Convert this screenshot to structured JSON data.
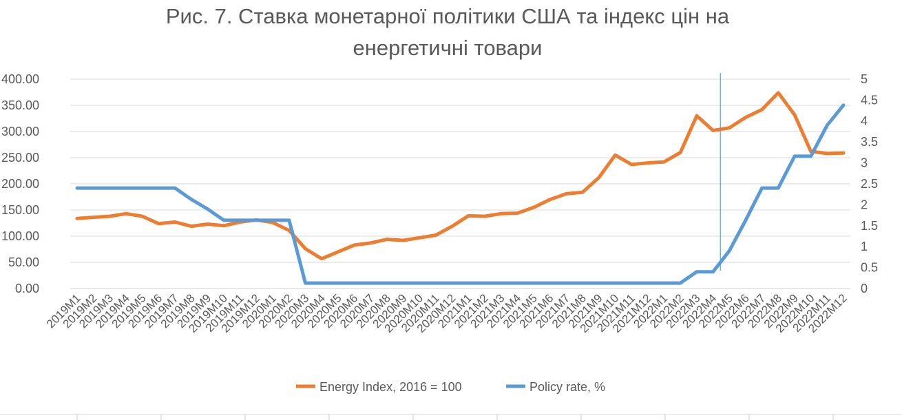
{
  "chart_data": {
    "type": "line",
    "title_line1": "Рис. 7. Ставка монетарної політики США та індекс цін на",
    "title_line2": "енергетичні товари",
    "categories": [
      "2019M1",
      "2019M2",
      "2019M3",
      "2019M4",
      "2019M5",
      "2019M6",
      "2019M7",
      "2019M8",
      "2019M9",
      "2019M10",
      "2019M11",
      "2019M12",
      "2020M1",
      "2020M2",
      "2020M3",
      "2020M4",
      "2020M5",
      "2020M6",
      "2020M7",
      "2020M8",
      "2020M9",
      "2020M10",
      "2020M11",
      "2020M12",
      "2021M1",
      "2021M2",
      "2021M3",
      "2021M4",
      "2021M5",
      "2021M6",
      "2021M7",
      "2021M8",
      "2021M9",
      "2021M10",
      "2021M11",
      "2021M12",
      "2022M1",
      "2022M2",
      "2022M3",
      "2022M4",
      "2022M5",
      "2022M6",
      "2022M7",
      "2022M8",
      "2022M9",
      "2022M10",
      "2022M11",
      "2022M12"
    ],
    "left_axis": {
      "ylim": [
        0,
        400
      ],
      "ticks": [
        "0.00",
        "50.00",
        "100.00",
        "150.00",
        "200.00",
        "250.00",
        "300.00",
        "350.00",
        "400.00"
      ]
    },
    "right_axis": {
      "ylim": [
        0,
        5
      ],
      "ticks": [
        "0",
        "0.5",
        "1",
        "1.5",
        "2",
        "2.5",
        "3",
        "3.5",
        "4",
        "4.5",
        "5"
      ]
    },
    "series": [
      {
        "name": "Energy Index, 2016 = 100",
        "axis": "left",
        "color": "#ED7D31",
        "values": [
          134,
          136,
          138,
          143,
          138,
          124,
          127,
          119,
          123,
          120,
          127,
          131,
          126,
          111,
          76,
          57,
          70,
          83,
          87,
          94,
          92,
          97,
          102,
          119,
          139,
          138,
          143,
          144,
          155,
          170,
          181,
          184,
          212,
          255,
          237,
          240,
          242,
          260,
          330,
          302,
          307,
          327,
          342,
          374,
          332,
          262,
          258,
          259
        ]
      },
      {
        "name": "Policy rate, %",
        "axis": "right",
        "color": "#5B9BD5",
        "values": [
          2.4,
          2.4,
          2.4,
          2.4,
          2.4,
          2.4,
          2.4,
          2.13,
          1.9,
          1.63,
          1.63,
          1.63,
          1.63,
          1.63,
          0.13,
          0.13,
          0.13,
          0.13,
          0.13,
          0.13,
          0.13,
          0.13,
          0.13,
          0.13,
          0.13,
          0.13,
          0.13,
          0.13,
          0.13,
          0.13,
          0.13,
          0.13,
          0.13,
          0.13,
          0.13,
          0.13,
          0.13,
          0.13,
          0.4,
          0.4,
          0.9,
          1.63,
          2.4,
          2.4,
          3.16,
          3.16,
          3.9,
          4.38
        ]
      }
    ],
    "annotation_line_at": "2022M5",
    "grid": true,
    "legend_position": "bottom"
  }
}
